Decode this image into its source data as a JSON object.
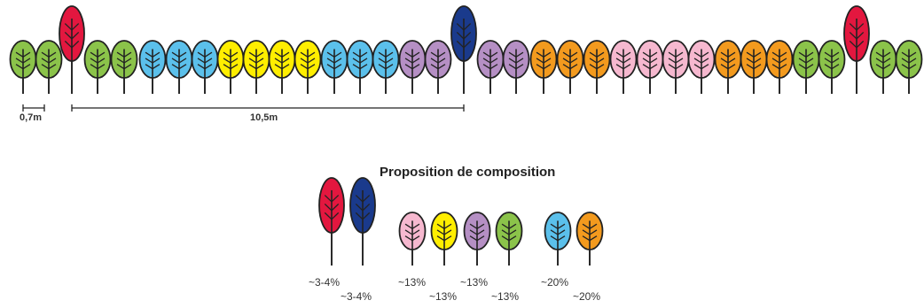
{
  "colors": {
    "green": "#8bc34a",
    "blue": "#5bc0eb",
    "yellow": "#ffee00",
    "purple": "#b58fc4",
    "orange": "#f39a1e",
    "pink": "#f6b8cf",
    "red": "#e3173f",
    "navy": "#1a3a8c",
    "outline": "#222222"
  },
  "hedge_sequence": [
    "green",
    "green",
    "red",
    "green",
    "green",
    "blue",
    "blue",
    "blue",
    "yellow",
    "yellow",
    "yellow",
    "yellow",
    "blue",
    "blue",
    "blue",
    "purple",
    "purple",
    "navy",
    "purple",
    "purple",
    "orange",
    "orange",
    "orange",
    "pink",
    "pink",
    "pink",
    "pink",
    "orange",
    "orange",
    "orange",
    "green",
    "green",
    "red",
    "green",
    "green"
  ],
  "tall_types": [
    "red",
    "navy"
  ],
  "scale": {
    "small_label": "0,7m",
    "large_label": "10,5m"
  },
  "composition": {
    "title": "Proposition de composition",
    "groups": [
      {
        "items": [
          {
            "color": "red",
            "tall": true,
            "label": "~3-4%"
          },
          {
            "color": "navy",
            "tall": true,
            "label": "~3-4%"
          }
        ]
      },
      {
        "items": [
          {
            "color": "pink",
            "tall": false,
            "label": "~13%"
          },
          {
            "color": "yellow",
            "tall": false,
            "label": "~13%"
          },
          {
            "color": "purple",
            "tall": false,
            "label": "~13%"
          },
          {
            "color": "green",
            "tall": false,
            "label": "~13%"
          }
        ]
      },
      {
        "items": [
          {
            "color": "blue",
            "tall": false,
            "label": "~20%"
          },
          {
            "color": "orange",
            "tall": false,
            "label": "~20%"
          }
        ]
      }
    ]
  }
}
